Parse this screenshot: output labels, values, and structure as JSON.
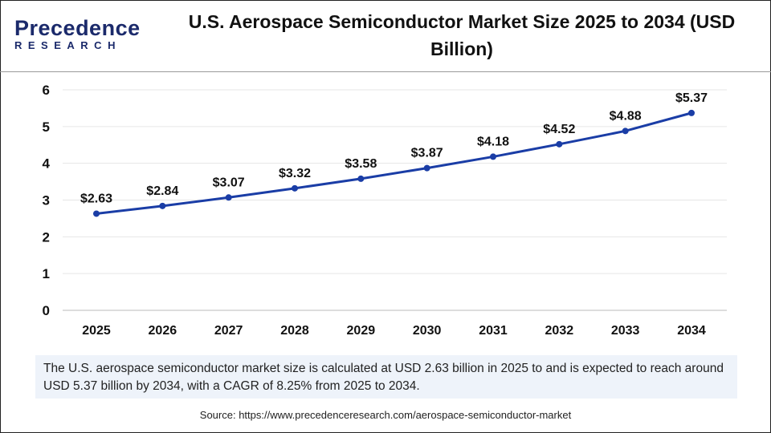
{
  "logo": {
    "line1": "Precedence",
    "line2": "RESEARCH"
  },
  "chart_data": {
    "type": "line",
    "title": "U.S. Aerospace Semiconductor Market Size 2025 to 2034 (USD Billion)",
    "categories": [
      "2025",
      "2026",
      "2027",
      "2028",
      "2029",
      "2030",
      "2031",
      "2032",
      "2033",
      "2034"
    ],
    "values": [
      2.63,
      2.84,
      3.07,
      3.32,
      3.58,
      3.87,
      4.18,
      4.52,
      4.88,
      5.37
    ],
    "data_labels": [
      "$2.63",
      "$2.84",
      "$3.07",
      "$3.32",
      "$3.58",
      "$3.87",
      "$4.18",
      "$4.52",
      "$4.88",
      "$5.37"
    ],
    "yticks": [
      "0",
      "1",
      "2",
      "3",
      "4",
      "5",
      "6"
    ],
    "ylim": [
      0,
      6
    ],
    "grid": true,
    "line_color": "#1a3da6"
  },
  "description": "The U.S. aerospace semiconductor market size is calculated at USD 2.63 billion in 2025 to and is expected to reach around USD 5.37 billion by 2034, with a CAGR of 8.25% from 2025 to 2034.",
  "source": "Source: https://www.precedenceresearch.com/aerospace-semiconductor-market"
}
